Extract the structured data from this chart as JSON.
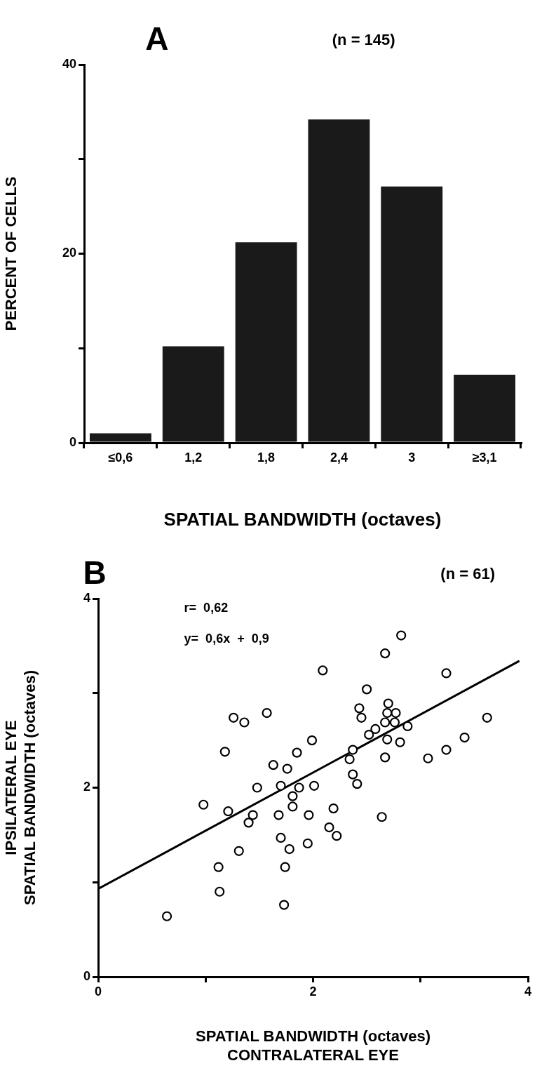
{
  "chart_data": [
    {
      "type": "bar",
      "title": "A",
      "subtitle": "(n = 145)",
      "xlabel": "SPATIAL BANDWIDTH (octaves)",
      "ylabel": "PERCENT OF CELLS",
      "categories": [
        "≤0,6",
        "1,2",
        "1,8",
        "2,4",
        "3",
        "≥3,1"
      ],
      "values": [
        1,
        10.2,
        21.2,
        34.2,
        27.1,
        7.2
      ],
      "color": "#1a1a1a",
      "ylim": [
        0,
        40
      ],
      "yticks": [
        0,
        {
          "value": 10,
          "label": null
        },
        20,
        {
          "value": 30,
          "label": null
        },
        40
      ]
    },
    {
      "type": "scatter",
      "title": "B",
      "subtitle": "(n = 61)",
      "xlabel": "SPATIAL BANDWIDTH (octaves)\nCONTRALATERAL EYE",
      "ylabel": "IPSILATERAL EYE\nSPATIAL BANDWIDTH (octaves)",
      "annotations": [
        "r=  0,62",
        "y=  0,6x  +  0,9"
      ],
      "xlim": [
        0,
        4
      ],
      "ylim": [
        0,
        4
      ],
      "xticks": [
        0,
        {
          "value": 1,
          "label": null
        },
        2,
        {
          "value": 3,
          "label": null
        },
        4
      ],
      "yticks": [
        0,
        {
          "value": 1,
          "label": null
        },
        2,
        {
          "value": 3,
          "label": null
        },
        4
      ],
      "series": [
        {
          "type": "scatter",
          "marker": "circle",
          "color": "#000000",
          "x": [
            3.62,
            3.41,
            3.24,
            3.07,
            3.24,
            2.82,
            2.67,
            2.5,
            2.88,
            2.77,
            2.7,
            2.76,
            2.81,
            2.69,
            2.67,
            2.69,
            2.67,
            2.58,
            2.52,
            2.43,
            2.45,
            2.37,
            2.34,
            2.37,
            2.41,
            2.09,
            1.99,
            1.85,
            2.01,
            1.87,
            1.81,
            1.76,
            1.63,
            1.7,
            1.48,
            1.57,
            1.36,
            1.26,
            1.18,
            2.64,
            2.19,
            2.15,
            2.22,
            1.96,
            1.95,
            1.81,
            1.68,
            1.7,
            1.78,
            1.74,
            1.73,
            1.44,
            1.4,
            1.31,
            1.21,
            1.12,
            1.13,
            0.98,
            0.64
          ],
          "values": [
            2.74,
            2.53,
            2.4,
            2.31,
            3.21,
            3.61,
            3.42,
            3.04,
            2.65,
            2.79,
            2.89,
            2.69,
            2.48,
            2.79,
            2.69,
            2.51,
            2.32,
            2.62,
            2.56,
            2.84,
            2.74,
            2.4,
            2.3,
            2.14,
            2.04,
            3.24,
            2.5,
            2.37,
            2.02,
            2,
            1.91,
            2.2,
            2.24,
            2.02,
            2,
            2.79,
            2.69,
            2.74,
            2.38,
            1.69,
            1.78,
            1.58,
            1.49,
            1.71,
            1.41,
            1.8,
            1.71,
            1.47,
            1.35,
            1.16,
            0.76,
            1.71,
            1.63,
            1.33,
            1.75,
            1.16,
            0.9,
            1.82,
            0.64
          ]
        },
        {
          "type": "line",
          "marker": "none",
          "color": "#000000",
          "x": [
            0,
            3.92
          ],
          "values": [
            0.93,
            3.34
          ]
        }
      ]
    }
  ]
}
